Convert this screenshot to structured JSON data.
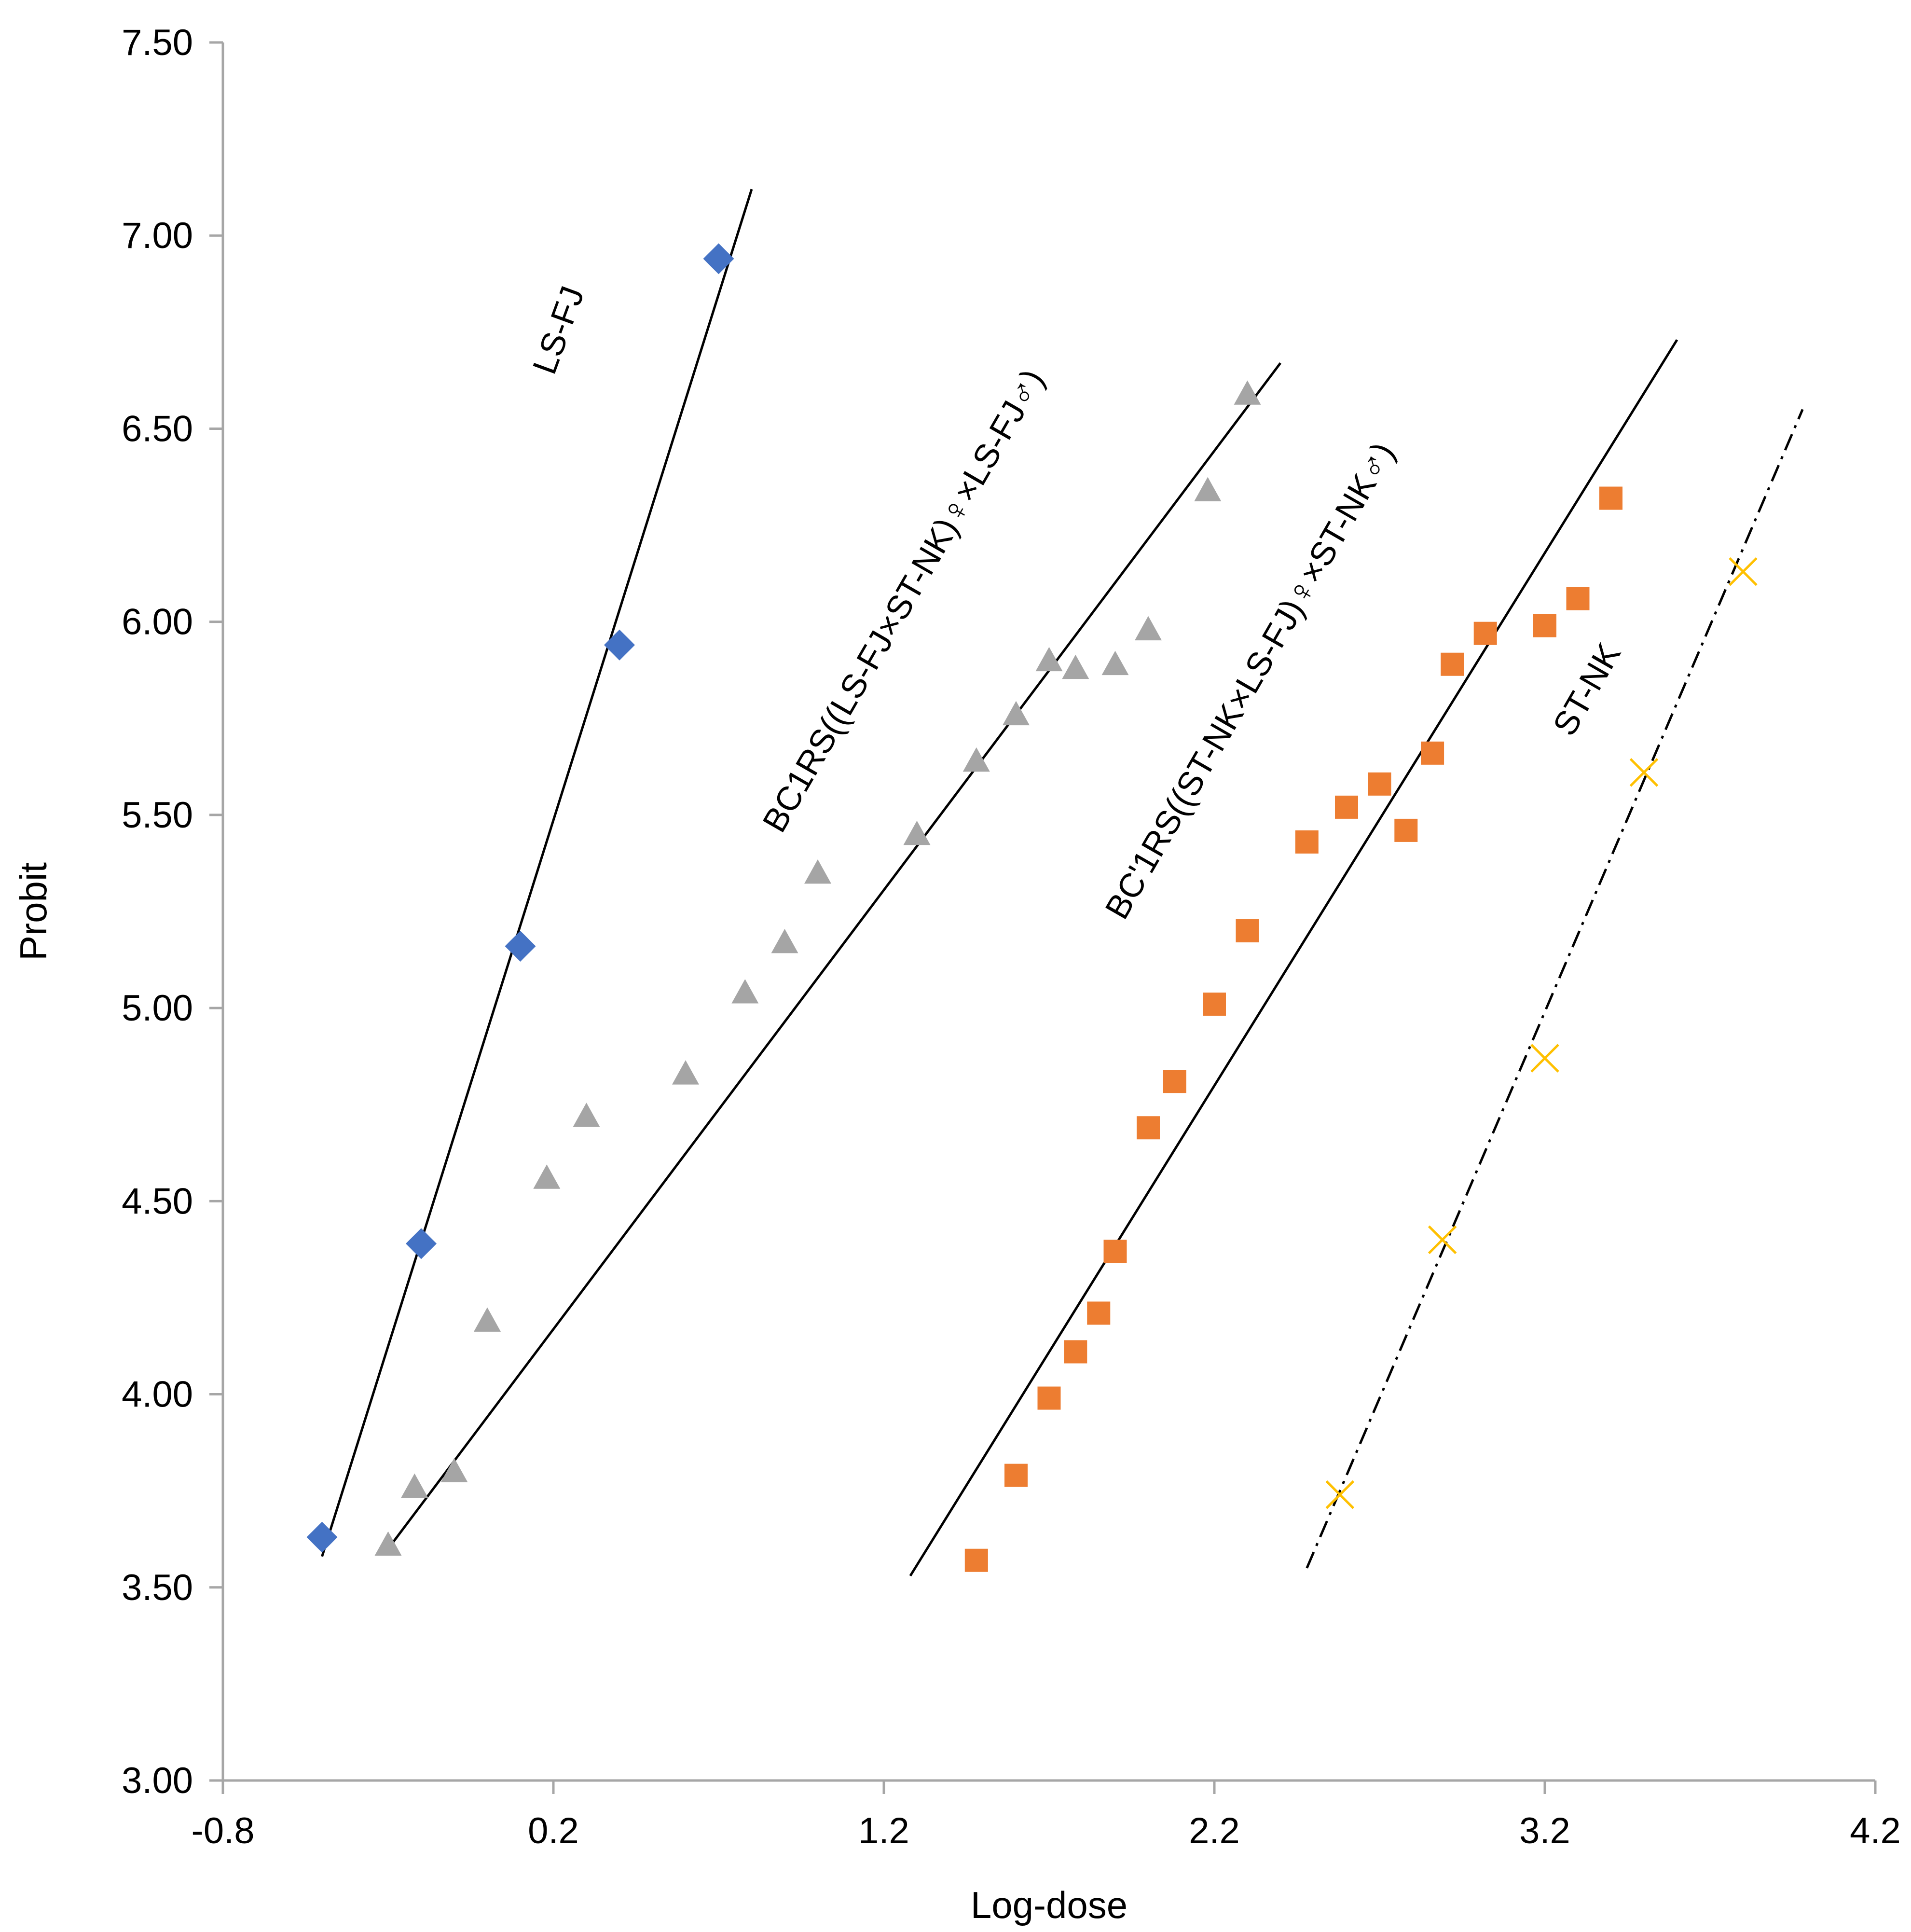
{
  "chart_data": {
    "type": "scatter",
    "title": "",
    "xlabel": "Log-dose",
    "ylabel": "Probit",
    "xlim": [
      -0.8,
      4.2
    ],
    "ylim": [
      3.0,
      7.5
    ],
    "xticks": [
      -0.8,
      0.2,
      1.2,
      2.2,
      3.2,
      4.2
    ],
    "xtick_labels": [
      "-0.8",
      "0.2",
      "1.2",
      "2.2",
      "3.2",
      "4.2"
    ],
    "yticks": [
      3.0,
      3.5,
      4.0,
      4.5,
      5.0,
      5.5,
      6.0,
      6.5,
      7.0,
      7.5
    ],
    "ytick_labels": [
      "3.00",
      "3.50",
      "4.00",
      "4.50",
      "5.00",
      "5.50",
      "6.00",
      "6.50",
      "7.00",
      "7.50"
    ],
    "grid": false,
    "series": [
      {
        "name": "LS-FJ",
        "label": "LS-FJ",
        "marker": "diamond",
        "color": "#4472C4",
        "line_style": "solid",
        "x": [
          -0.5,
          -0.2,
          0.1,
          0.4,
          0.7
        ],
        "y": [
          3.63,
          4.39,
          5.16,
          5.94,
          6.94
        ],
        "fit": {
          "x": [
            -0.5,
            0.8
          ],
          "y": [
            3.58,
            7.12
          ]
        }
      },
      {
        "name": "BC1RS((LS-FJ×ST-NK)♀×LS-FJ♂)",
        "label": "BC1RS((LS-FJ×ST-NK)♀×LS-FJ♂)",
        "marker": "triangle",
        "color": "#A5A5A5",
        "line_style": "solid",
        "x": [
          -0.3,
          -0.22,
          -0.1,
          0.0,
          0.18,
          0.3,
          0.6,
          0.78,
          0.9,
          1.0,
          1.3,
          1.48,
          1.6,
          1.7,
          1.78,
          1.9,
          2.0,
          2.18,
          2.3
        ],
        "y": [
          3.61,
          3.76,
          3.8,
          4.19,
          4.56,
          4.72,
          4.83,
          5.04,
          5.17,
          5.35,
          5.45,
          5.64,
          5.76,
          5.9,
          5.88,
          5.89,
          5.98,
          6.34,
          6.59
        ],
        "fit": {
          "x": [
            -0.3,
            2.4
          ],
          "y": [
            3.6,
            6.67
          ]
        }
      },
      {
        "name": "BC'1RS((ST-NK×LS-FJ)♀×ST-NK♂)",
        "label": "BC'1RS((ST-NK×LS-FJ)♀×ST-NK♂)",
        "marker": "square",
        "color": "#ED7D31",
        "line_style": "solid",
        "x": [
          1.48,
          1.6,
          1.7,
          1.78,
          1.85,
          1.9,
          2.0,
          2.08,
          2.2,
          2.3,
          2.48,
          2.6,
          2.7,
          2.78,
          2.86,
          2.92,
          3.02,
          3.2,
          3.3,
          3.4
        ],
        "y": [
          3.57,
          3.79,
          3.99,
          4.11,
          4.21,
          4.37,
          4.69,
          4.81,
          5.01,
          5.2,
          5.43,
          5.52,
          5.58,
          5.46,
          5.66,
          5.89,
          5.97,
          5.99,
          6.06,
          6.32
        ],
        "fit": {
          "x": [
            1.28,
            3.6
          ],
          "y": [
            3.53,
            6.73
          ]
        }
      },
      {
        "name": "ST-NK",
        "label": "ST-NK",
        "marker": "x",
        "color": "#FFC000",
        "line_style": "dashdot",
        "x": [
          2.58,
          2.89,
          3.2,
          3.5,
          3.8
        ],
        "y": [
          3.74,
          4.4,
          4.87,
          5.61,
          6.13
        ],
        "fit": {
          "x": [
            2.48,
            3.98
          ],
          "y": [
            3.55,
            6.55
          ]
        }
      }
    ]
  }
}
